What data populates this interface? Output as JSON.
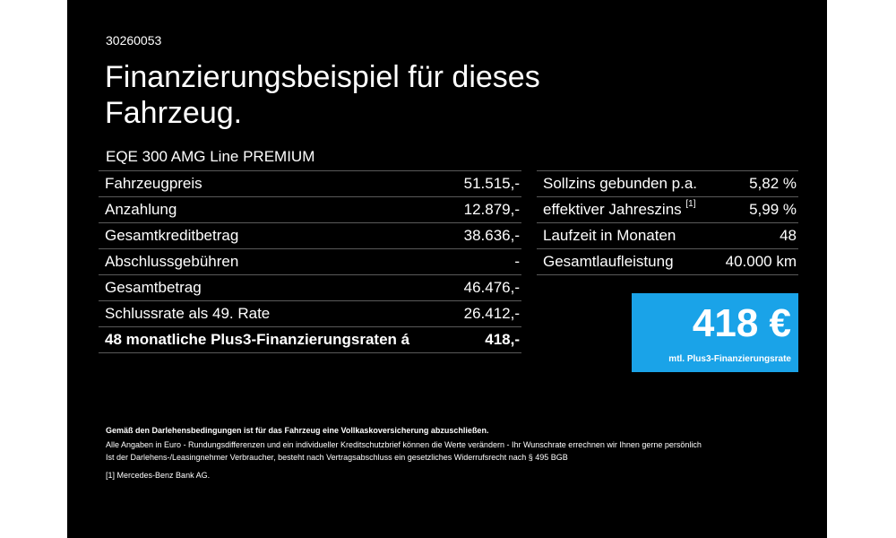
{
  "ref": "30260053",
  "title": "Finanzierungsbeispiel für dieses Fahrzeug.",
  "model": "EQE 300 AMG Line PREMIUM",
  "left_rows": [
    {
      "label": "Fahrzeugpreis",
      "value": "51.515,-"
    },
    {
      "label": "Anzahlung",
      "value": "12.879,-"
    },
    {
      "label": "Gesamtkreditbetrag",
      "value": "38.636,-"
    },
    {
      "label": "Abschlussgebühren",
      "value": "-"
    },
    {
      "label": "Gesamtbetrag",
      "value": "46.476,-"
    },
    {
      "label": "Schlussrate als 49. Rate",
      "value": "26.412,-"
    },
    {
      "label": "48 monatliche Plus3-Finanzierungsraten á",
      "value": "418,-"
    }
  ],
  "right_rows": [
    {
      "label": "Sollzins gebunden p.a.",
      "value": "5,82 %"
    },
    {
      "label": "effektiver Jahreszins",
      "footnote_mark": "[1]",
      "value": "5,99 %"
    },
    {
      "label": "Laufzeit in Monaten",
      "value": "48"
    },
    {
      "label": "Gesamtlaufleistung",
      "value": "40.000 km"
    }
  ],
  "rate_box": {
    "amount": "418 €",
    "label": "mtl. Plus3-Finanzierungsrate",
    "color": "#1aa3e8"
  },
  "notes": {
    "insurance": "Gemäß den Darlehensbedingungen ist für das Fahrzeug eine Vollkaskoversicherung abzuschließen.",
    "line1": "Alle Angaben in Euro - Rundungsdifferenzen und ein individueller Kreditschutzbrief können die Werte verändern - Ihr Wunschrate errechnen wir Ihnen gerne persönlich",
    "line2": "Ist der Darlehens-/Leasingnehmer Verbraucher, besteht nach Vertragsabschluss ein gesetzliches Widerrufsrecht nach § 495 BGB",
    "footnote_mark": "[1]",
    "footnote": "Mercedes-Benz Bank AG."
  }
}
